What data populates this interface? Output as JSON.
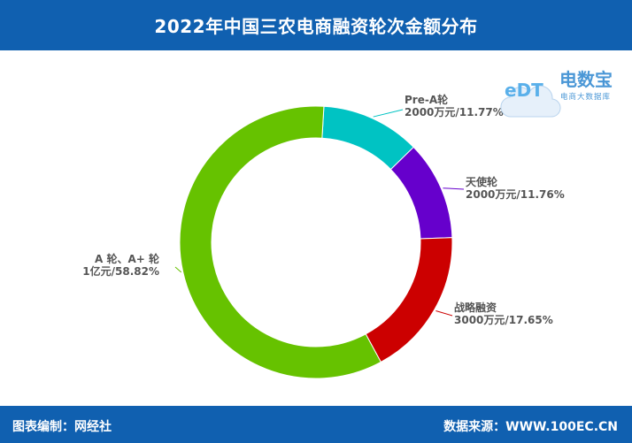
{
  "header": {
    "title": "2022年中国三农电商融资轮次金额分布"
  },
  "footer": {
    "left": "图表编制：网经社",
    "right": "数据来源：WWW.100EC.CN"
  },
  "logo": {
    "mark": "eDT",
    "name": "电数宝",
    "sub": "电商大数据库"
  },
  "chart_data": {
    "type": "pie",
    "donut": true,
    "slices": [
      {
        "name": "Pre-A轮",
        "amount": "2000万元",
        "percent_label": "11.77%",
        "value": 11.77,
        "color": "#00c3c3"
      },
      {
        "name": "天使轮",
        "amount": "2000万元",
        "percent_label": "11.76%",
        "value": 11.76,
        "color": "#6600cc"
      },
      {
        "name": "战略融资",
        "amount": "3000万元",
        "percent_label": "17.65%",
        "value": 17.65,
        "color": "#cc0000"
      },
      {
        "name": "A 轮、A+ 轮",
        "amount": "1亿元",
        "percent_label": "58.82%",
        "value": 58.82,
        "color": "#66c200"
      }
    ]
  }
}
